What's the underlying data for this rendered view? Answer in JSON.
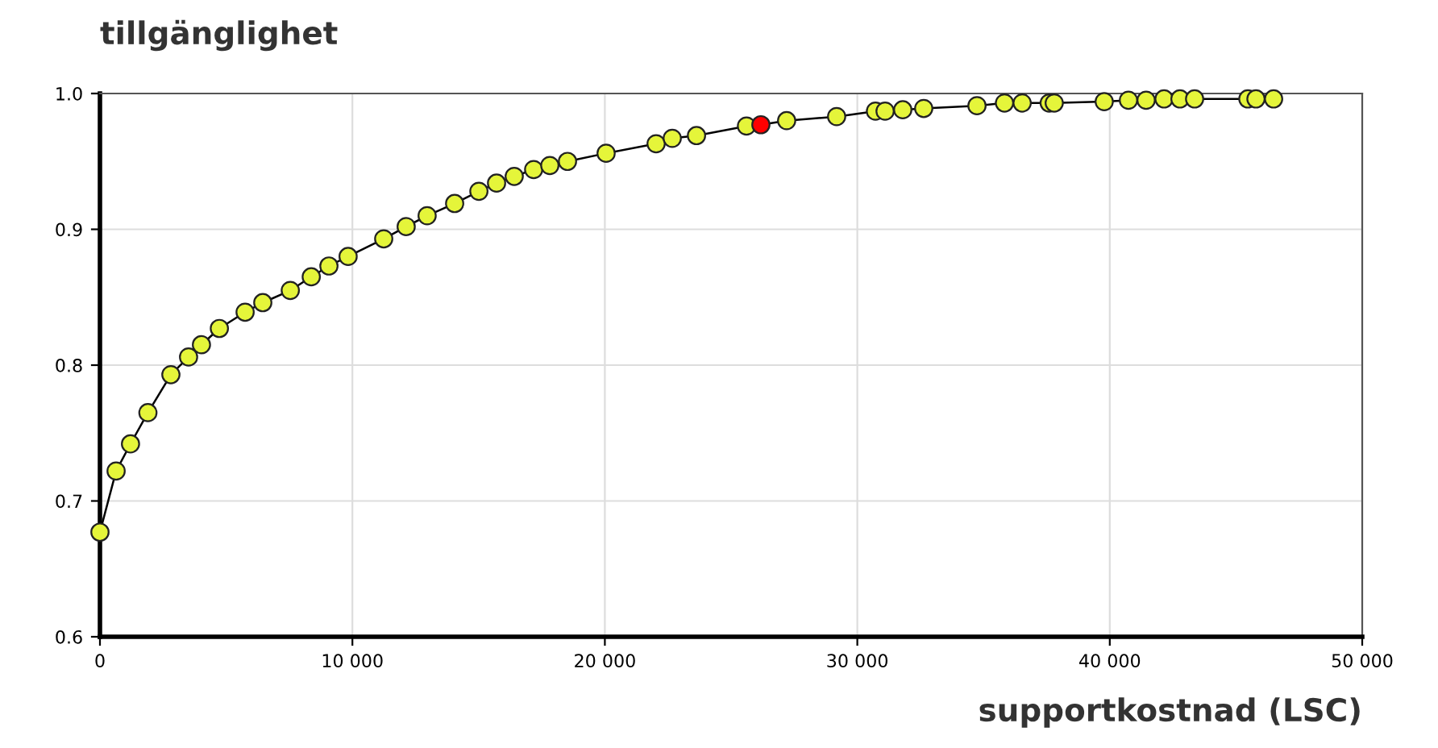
{
  "chart_data": {
    "type": "line",
    "title": "tillgänglighet",
    "xlabel": "supportkostnad (LSC)",
    "x": [
      0,
      640,
      1210,
      1900,
      2810,
      3510,
      4020,
      4730,
      5750,
      6450,
      7540,
      8370,
      9070,
      9830,
      11240,
      12130,
      12960,
      14050,
      15010,
      15710,
      16410,
      17180,
      17820,
      18520,
      20050,
      22030,
      22670,
      23630,
      25610,
      26180,
      27200,
      29180,
      30720,
      31100,
      31800,
      32630,
      34740,
      35830,
      36530,
      37600,
      37800,
      39780,
      40740,
      41440,
      42150,
      42780,
      43360,
      45470,
      45790,
      46490
    ],
    "series": [
      {
        "color": "#000000",
        "values": [
          0.677,
          0.722,
          0.742,
          0.765,
          0.793,
          0.806,
          0.815,
          0.827,
          0.839,
          0.846,
          0.855,
          0.865,
          0.873,
          0.88,
          0.893,
          0.902,
          0.91,
          0.919,
          0.928,
          0.934,
          0.939,
          0.944,
          0.947,
          0.95,
          0.956,
          0.963,
          0.967,
          0.969,
          0.976,
          0.977,
          0.98,
          0.983,
          0.987,
          0.987,
          0.988,
          0.989,
          0.991,
          0.993,
          0.993,
          0.993,
          0.993,
          0.994,
          0.995,
          0.995,
          0.996,
          0.996,
          0.996,
          0.996,
          0.996,
          0.996
        ],
        "colors": [
          "#e5f53a",
          "#e5f53a",
          "#e5f53a",
          "#e5f53a",
          "#e5f53a",
          "#e5f53a",
          "#e5f53a",
          "#e5f53a",
          "#e5f53a",
          "#e5f53a",
          "#e5f53a",
          "#e5f53a",
          "#e5f53a",
          "#e5f53a",
          "#e5f53a",
          "#e5f53a",
          "#e5f53a",
          "#e5f53a",
          "#e5f53a",
          "#e5f53a",
          "#e5f53a",
          "#e5f53a",
          "#e5f53a",
          "#e5f53a",
          "#e5f53a",
          "#e5f53a",
          "#e5f53a",
          "#e5f53a",
          "#e5f53a",
          "#ff0000",
          "#e5f53a",
          "#e5f53a",
          "#e5f53a",
          "#e5f53a",
          "#e5f53a",
          "#e5f53a",
          "#e5f53a",
          "#e5f53a",
          "#e5f53a",
          "#e5f53a",
          "#e5f53a",
          "#e5f53a",
          "#e5f53a",
          "#e5f53a",
          "#e5f53a",
          "#e5f53a",
          "#e5f53a",
          "#e5f53a",
          "#e5f53a",
          "#e5f53a"
        ]
      }
    ],
    "xlim": [
      0,
      50000
    ],
    "ylim": [
      0.6,
      1.0
    ],
    "xticks": [
      0,
      {
        "value": 10000,
        "label": "10 000"
      },
      {
        "value": 20000,
        "label": "20 000"
      },
      {
        "value": 30000,
        "label": "30 000"
      },
      {
        "value": 40000,
        "label": "40 000"
      },
      {
        "value": 50000,
        "label": "50 000"
      }
    ],
    "yticks": [
      0.6,
      0.7,
      0.8,
      0.9,
      {
        "value": 1.0,
        "label": "1.0"
      }
    ],
    "grid": true,
    "marker": "circle",
    "line_style": "solid",
    "legend": false
  }
}
